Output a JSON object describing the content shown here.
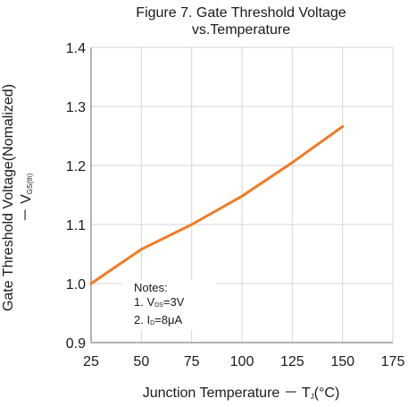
{
  "chart_data": {
    "type": "line",
    "title_line1": "Figure 7. Gate Threshold Voltage",
    "title_line2": "vs.Temperature",
    "ylabel_line1": "Gate Threshold Voltage(Nomalized)",
    "ylabel_line2_prefix": "－ V",
    "ylabel_line2_sub": "GS(th)",
    "xlabel_prefix": "Junction Temperature － T",
    "xlabel_sub": "J",
    "xlabel_suffix": "(°C)",
    "x_ticks": [
      "25",
      "50",
      "75",
      "100",
      "125",
      "150",
      "175"
    ],
    "y_ticks": [
      "0.9",
      "1.0",
      "1.1",
      "1.2",
      "1.3",
      "1.4"
    ],
    "xlim": [
      25,
      175
    ],
    "ylim": [
      0.9,
      1.4
    ],
    "grid": true,
    "series": [
      {
        "color": "#f07b23",
        "x": [
          25,
          50,
          75,
          100,
          125,
          150
        ],
        "y": [
          1.0,
          1.058,
          1.1,
          1.148,
          1.205,
          1.266
        ]
      }
    ],
    "notes": {
      "heading": "Notes:",
      "line1_prefix": "1. V",
      "line1_sub": "DS",
      "line1_suffix": "=3V",
      "line2_prefix": "2. I",
      "line2_sub": "D",
      "line2_suffix": "=8μA"
    }
  }
}
